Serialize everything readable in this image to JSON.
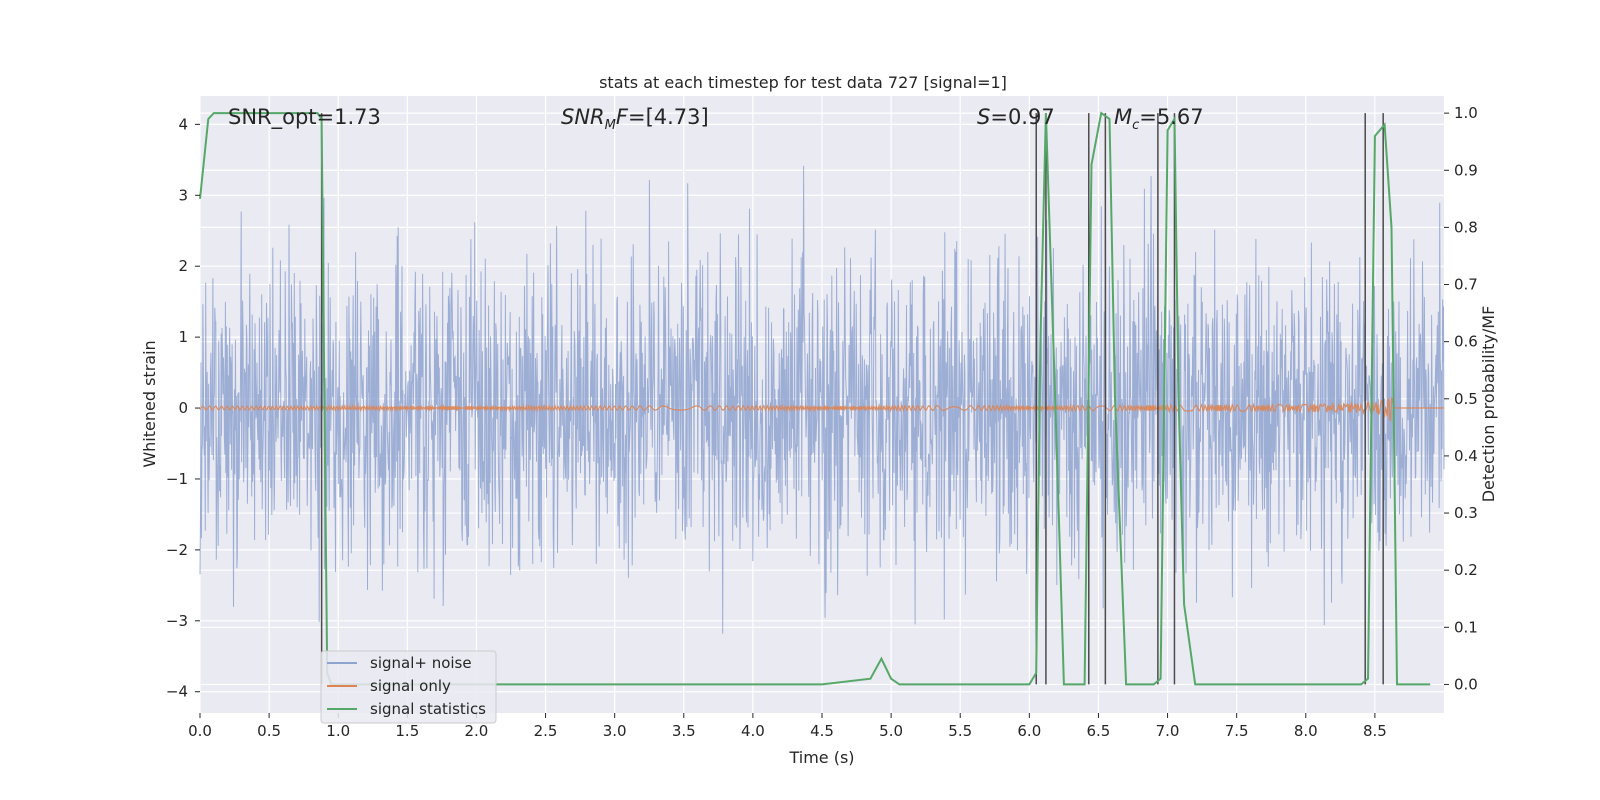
{
  "chart_data": {
    "type": "line",
    "title": "stats at each timestep for test data 727 [signal=1]",
    "xlabel": "Time (s)",
    "ylabel": "Whitened strain",
    "ylabel_right": "Detection probability/MF",
    "xlim": [
      0.0,
      9.0
    ],
    "ylim": [
      -4.3,
      4.4
    ],
    "ylim_right": [
      -0.05,
      1.03
    ],
    "xticks": [
      "0.0",
      "0.5",
      "1.0",
      "1.5",
      "2.0",
      "2.5",
      "3.0",
      "3.5",
      "4.0",
      "4.5",
      "5.0",
      "5.5",
      "6.0",
      "6.5",
      "7.0",
      "7.5",
      "8.0",
      "8.5"
    ],
    "yticks_left": [
      "4",
      "3",
      "2",
      "1",
      "0",
      "−1",
      "−2",
      "−3",
      "−4"
    ],
    "yticks_right": [
      "1.0",
      "0.9",
      "0.8",
      "0.7",
      "0.6",
      "0.5",
      "0.4",
      "0.3",
      "0.2",
      "0.1",
      "0.0"
    ],
    "grid": true,
    "legend_position": "lower-left",
    "annotations": {
      "snr_opt": "SNR_opt=1.73",
      "snr_mf": "[4.73]",
      "s_value": "=0.97",
      "mc_value": "=5.67"
    },
    "series": [
      {
        "name": "signal+ noise",
        "color": "#8fa3d0",
        "description": "noisy whitened strain, roughly within [-3.5, 4.0]",
        "spike_envelope": {
          "max": 4.0,
          "min": -3.5
        }
      },
      {
        "name": "signal only",
        "color": "#dd8452",
        "description": "chirp near zero, amplitude growing toward t=8.6 s",
        "peak_time": 8.62,
        "peak_amplitude": 0.18
      },
      {
        "name": "signal statistics",
        "color": "#55a868",
        "axis": "right",
        "x": [
          0.0,
          0.06,
          0.1,
          0.14,
          0.2,
          0.85,
          0.88,
          0.9,
          0.92,
          0.95,
          1.0,
          4.5,
          4.85,
          4.93,
          5.0,
          5.06,
          5.5,
          6.0,
          6.05,
          6.08,
          6.12,
          6.2,
          6.25,
          6.35,
          6.4,
          6.45,
          6.52,
          6.58,
          6.62,
          6.7,
          6.8,
          6.9,
          6.95,
          7.0,
          7.05,
          7.08,
          7.12,
          7.2,
          7.5,
          7.8,
          8.0,
          8.4,
          8.45,
          8.5,
          8.57,
          8.62,
          8.66,
          8.75,
          8.9
        ],
        "y": [
          0.85,
          0.99,
          1.0,
          1.0,
          1.0,
          1.0,
          0.99,
          0.5,
          0.02,
          0.0,
          0.0,
          0.0,
          0.01,
          0.045,
          0.01,
          0.0,
          0.0,
          0.0,
          0.02,
          0.6,
          1.0,
          0.4,
          0.0,
          0.0,
          0.0,
          0.91,
          1.0,
          0.99,
          0.5,
          0.0,
          0.0,
          0.0,
          0.01,
          0.97,
          0.99,
          0.5,
          0.14,
          0.0,
          0.0,
          0.0,
          0.0,
          0.0,
          0.01,
          0.96,
          0.98,
          0.8,
          0.0,
          0.0,
          0.0
        ]
      }
    ],
    "vertical_markers": [
      {
        "color": "#4c4c4c",
        "x": [
          0.88,
          6.05,
          6.12,
          6.43,
          6.55,
          6.93,
          7.05,
          8.43,
          8.56
        ]
      }
    ]
  }
}
